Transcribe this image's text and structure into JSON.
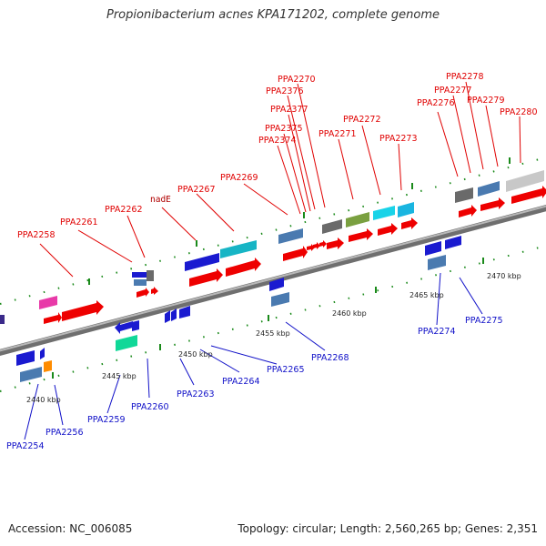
{
  "title": "Propionibacterium acnes KPA171202, complete genome",
  "footer": {
    "accession": "Accession: NC_006085",
    "summary": "Topology: circular; Length: 2,560,265 bp; Genes: 2,351"
  },
  "scale_labels": [
    "2440 kbp",
    "2445 kbp",
    "2450 kbp",
    "2455 kbp",
    "2460 kbp",
    "2465 kbp",
    "2470 kbp"
  ],
  "forward_labels": [
    "PPA2258",
    "PPA2261",
    "PPA2262",
    "nadE",
    "PPA2267",
    "PPA2269",
    "PPA2374",
    "PPA2375",
    "PPA2377",
    "PPA2376",
    "PPA2270",
    "PPA2271",
    "PPA2272",
    "PPA2273",
    "PPA2276",
    "PPA2277",
    "PPA2278",
    "PPA2279",
    "PPA2280"
  ],
  "reverse_labels": [
    "PPA2254",
    "PPA2256",
    "PPA2259",
    "PPA2260",
    "PPA2263",
    "PPA2264",
    "PPA2265",
    "PPA2268",
    "PPA2274",
    "PPA2275"
  ],
  "colors": {
    "backbone": "#808080",
    "forward_label": "#e00000",
    "reverse_label": "#1010c8",
    "tick": "#1a8a1a"
  }
}
